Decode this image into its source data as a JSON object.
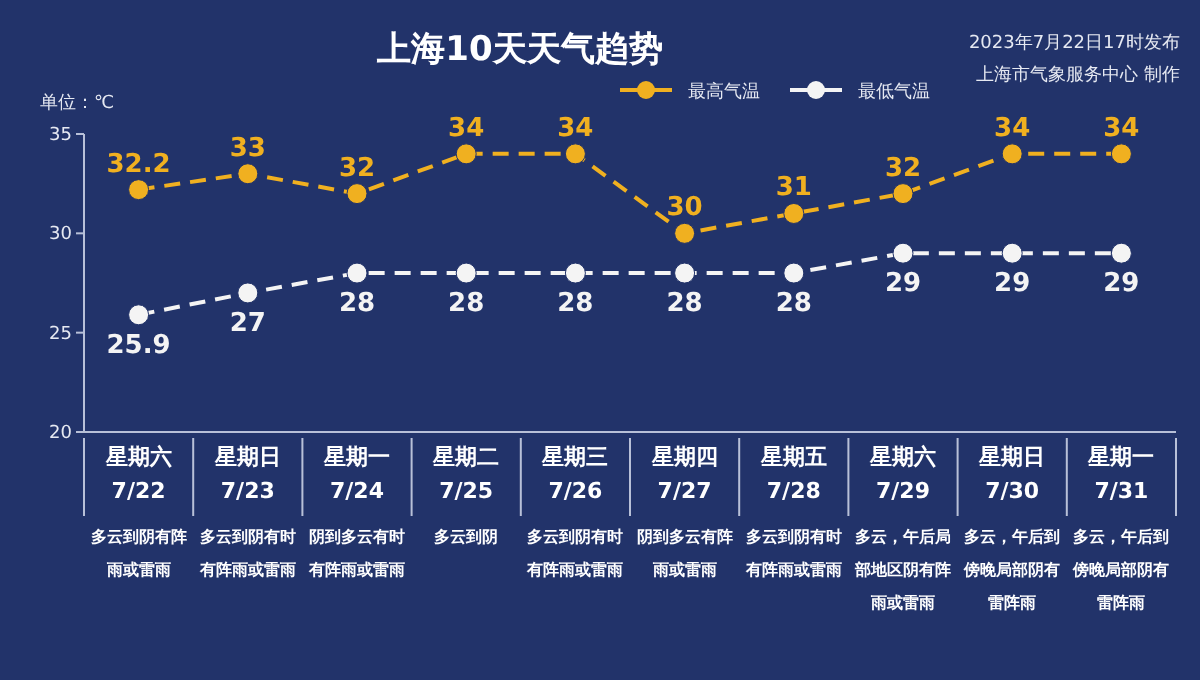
{
  "chart_data": {
    "type": "line",
    "title": "上海10天天气趋势",
    "subtitle": "2023年7月22日17时发布",
    "ylabel": "单位：℃",
    "categories": [
      "星期六\n7/22",
      "星期日\n7/23",
      "星期一\n7/24",
      "星期二\n7/25",
      "星期三\n7/26",
      "星期四\n7/27",
      "星期五\n7/28",
      "星期六\n7/29",
      "星期日\n7/30",
      "星期一\n7/31"
    ],
    "series": [
      {
        "name": "最高气温",
        "color": "#f0b020",
        "values": [
          32.2,
          33,
          32,
          34,
          34,
          30,
          31,
          32,
          34,
          34
        ]
      },
      {
        "name": "最低气温",
        "color": "#f4f4f4",
        "values": [
          25.9,
          27,
          28,
          28,
          28,
          28,
          28,
          29,
          29,
          29
        ]
      }
    ],
    "ylim": [
      20,
      35
    ],
    "yticks": [
      20,
      25,
      30,
      35
    ],
    "data_labels": true,
    "legend": "top",
    "marker": "circle",
    "line_style": "dashed",
    "grid": false,
    "annotations": [
      "多云到阴有阵雨或雷雨",
      "多云到阴有时有阵雨或雷雨",
      "阴到多云有时有阵雨或雷雨",
      "多云到阴",
      "多云到阴有时有阵雨或雷雨",
      "阴到多云有阵雨或雷雨",
      "多云到阴有时有阵雨或雷雨",
      "多云，午后局部地区阴有阵雨或雷雨",
      "多云，午后到傍晚局部阴有雷阵雨",
      "多云，午后到傍晚局部阴有雷阵雨",
      "上海市气象服务中心 制作"
    ]
  }
}
